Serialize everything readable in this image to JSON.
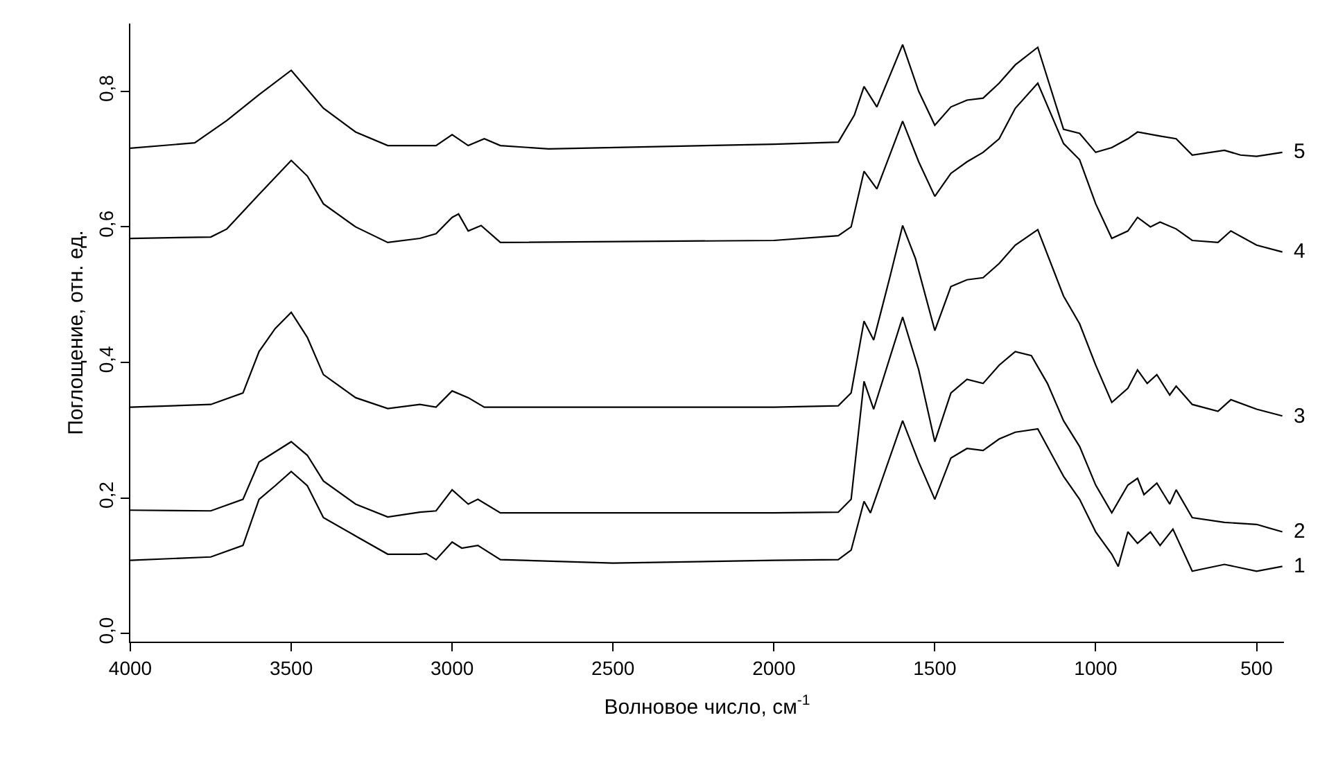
{
  "chart_data": {
    "type": "line",
    "xlabel": "Волновое число, см$^{-1}$",
    "ylabel": "Поглощение, отн. ед.",
    "xlim": [
      4000,
      415
    ],
    "ylim": [
      -0.012,
      0.9
    ],
    "xticks": [
      4000,
      3500,
      3000,
      2500,
      2000,
      1500,
      1000,
      500
    ],
    "yticks": [
      {
        "value": 0,
        "label": "0,0"
      },
      {
        "value": 0.2,
        "label": "0,2"
      },
      {
        "value": 0.4,
        "label": "0,4"
      },
      {
        "value": 0.6,
        "label": "0,6"
      },
      {
        "value": 0.8,
        "label": "0,8"
      }
    ],
    "grid": false,
    "legend": false,
    "marker": "none",
    "line_style": "solid",
    "series": [
      {
        "name": "1",
        "color": "#000000",
        "x": [
          4000,
          3750,
          3650,
          3600,
          3550,
          3500,
          3450,
          3400,
          3300,
          3200,
          3100,
          3080,
          3050,
          3000,
          2970,
          2920,
          2850,
          2500,
          2000,
          1800,
          1760,
          1720,
          1700,
          1600,
          1550,
          1500,
          1450,
          1400,
          1350,
          1300,
          1250,
          1180,
          1100,
          1050,
          1000,
          950,
          930,
          900,
          870,
          830,
          800,
          760,
          700,
          600,
          500,
          420
        ],
        "values": [
          0.108,
          0.113,
          0.13,
          0.198,
          0.218,
          0.239,
          0.218,
          0.171,
          0.144,
          0.117,
          0.117,
          0.118,
          0.109,
          0.135,
          0.126,
          0.13,
          0.109,
          0.104,
          0.108,
          0.109,
          0.123,
          0.195,
          0.178,
          0.314,
          0.253,
          0.198,
          0.259,
          0.273,
          0.27,
          0.287,
          0.297,
          0.302,
          0.232,
          0.198,
          0.15,
          0.117,
          0.099,
          0.15,
          0.133,
          0.15,
          0.13,
          0.154,
          0.092,
          0.102,
          0.092,
          0.099
        ]
      },
      {
        "name": "2",
        "color": "#000000",
        "x": [
          4000,
          3750,
          3650,
          3600,
          3500,
          3450,
          3400,
          3300,
          3200,
          3100,
          3050,
          3000,
          2950,
          2920,
          2850,
          2000,
          1800,
          1760,
          1720,
          1690,
          1600,
          1550,
          1500,
          1450,
          1400,
          1350,
          1300,
          1250,
          1200,
          1150,
          1100,
          1050,
          1000,
          950,
          900,
          870,
          850,
          810,
          770,
          750,
          700,
          600,
          500,
          420
        ],
        "values": [
          0.182,
          0.181,
          0.198,
          0.253,
          0.283,
          0.263,
          0.225,
          0.191,
          0.172,
          0.179,
          0.181,
          0.212,
          0.191,
          0.198,
          0.178,
          0.178,
          0.179,
          0.198,
          0.372,
          0.331,
          0.467,
          0.389,
          0.283,
          0.355,
          0.375,
          0.369,
          0.396,
          0.416,
          0.41,
          0.369,
          0.314,
          0.276,
          0.219,
          0.178,
          0.219,
          0.229,
          0.205,
          0.222,
          0.191,
          0.212,
          0.171,
          0.164,
          0.161,
          0.15
        ]
      },
      {
        "name": "3",
        "color": "#000000",
        "x": [
          4000,
          3750,
          3650,
          3600,
          3550,
          3500,
          3450,
          3400,
          3300,
          3200,
          3100,
          3050,
          3000,
          2950,
          2900,
          2000,
          1800,
          1760,
          1720,
          1690,
          1640,
          1600,
          1560,
          1500,
          1450,
          1400,
          1350,
          1300,
          1250,
          1180,
          1100,
          1050,
          1000,
          950,
          900,
          870,
          840,
          810,
          770,
          750,
          700,
          620,
          580,
          500,
          420
        ],
        "values": [
          0.334,
          0.338,
          0.355,
          0.416,
          0.45,
          0.474,
          0.437,
          0.382,
          0.348,
          0.332,
          0.338,
          0.334,
          0.358,
          0.348,
          0.334,
          0.334,
          0.336,
          0.355,
          0.461,
          0.433,
          0.525,
          0.602,
          0.553,
          0.447,
          0.512,
          0.522,
          0.525,
          0.546,
          0.573,
          0.596,
          0.498,
          0.457,
          0.396,
          0.341,
          0.362,
          0.389,
          0.369,
          0.382,
          0.352,
          0.365,
          0.338,
          0.328,
          0.345,
          0.331,
          0.321
        ]
      },
      {
        "name": "4",
        "color": "#000000",
        "x": [
          4000,
          3750,
          3700,
          3600,
          3500,
          3450,
          3400,
          3300,
          3200,
          3100,
          3050,
          3000,
          2980,
          2950,
          2910,
          2850,
          2000,
          1800,
          1760,
          1720,
          1680,
          1600,
          1550,
          1500,
          1450,
          1400,
          1350,
          1300,
          1250,
          1180,
          1100,
          1050,
          1000,
          950,
          900,
          870,
          830,
          800,
          750,
          700,
          620,
          580,
          500,
          420
        ],
        "values": [
          0.583,
          0.585,
          0.597,
          0.648,
          0.698,
          0.675,
          0.634,
          0.6,
          0.577,
          0.583,
          0.59,
          0.614,
          0.619,
          0.594,
          0.602,
          0.577,
          0.58,
          0.587,
          0.6,
          0.682,
          0.656,
          0.756,
          0.696,
          0.645,
          0.679,
          0.696,
          0.71,
          0.73,
          0.775,
          0.812,
          0.723,
          0.699,
          0.634,
          0.583,
          0.594,
          0.614,
          0.6,
          0.607,
          0.597,
          0.58,
          0.577,
          0.594,
          0.573,
          0.563
        ]
      },
      {
        "name": "5",
        "color": "#000000",
        "x": [
          4000,
          3800,
          3700,
          3600,
          3500,
          3400,
          3300,
          3200,
          3050,
          3000,
          2950,
          2900,
          2850,
          2700,
          2000,
          1800,
          1750,
          1720,
          1680,
          1600,
          1550,
          1500,
          1450,
          1400,
          1350,
          1300,
          1250,
          1180,
          1100,
          1050,
          1000,
          950,
          900,
          870,
          800,
          750,
          700,
          600,
          550,
          500,
          420
        ],
        "values": [
          0.716,
          0.724,
          0.757,
          0.795,
          0.831,
          0.775,
          0.74,
          0.72,
          0.72,
          0.736,
          0.72,
          0.73,
          0.72,
          0.715,
          0.722,
          0.725,
          0.765,
          0.807,
          0.777,
          0.869,
          0.8,
          0.75,
          0.777,
          0.787,
          0.79,
          0.812,
          0.839,
          0.865,
          0.744,
          0.738,
          0.71,
          0.717,
          0.73,
          0.74,
          0.734,
          0.73,
          0.706,
          0.713,
          0.706,
          0.704,
          0.71
        ]
      }
    ]
  }
}
